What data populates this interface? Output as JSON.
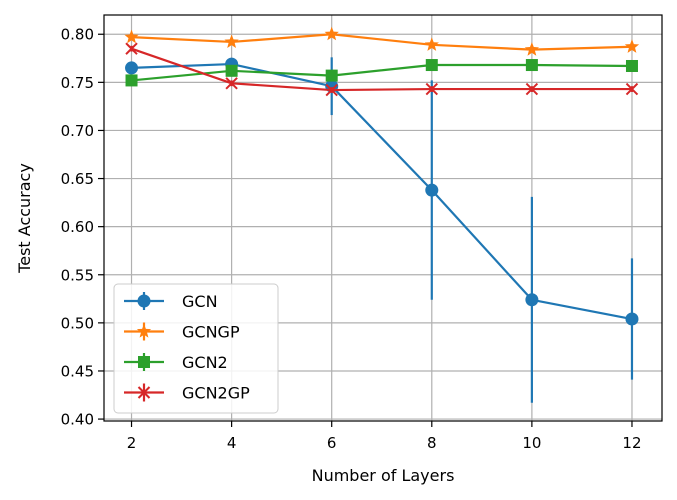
{
  "chart_data": {
    "type": "line",
    "xlabel": "Number of Layers",
    "ylabel": "Test Accuracy",
    "x": [
      2,
      4,
      6,
      8,
      10,
      12
    ],
    "xlim": [
      1.45,
      12.6
    ],
    "ylim": [
      0.398,
      0.82
    ],
    "xticks": [
      "2",
      "4",
      "6",
      "8",
      "10",
      "12"
    ],
    "yticks": [
      "0.40",
      "0.45",
      "0.50",
      "0.55",
      "0.60",
      "0.65",
      "0.70",
      "0.75",
      "0.80"
    ],
    "grid": true,
    "legend_position": "lower-left",
    "series": [
      {
        "name": "GCN",
        "color": "#1f77b4",
        "marker": "circle",
        "values": [
          0.765,
          0.769,
          0.746,
          0.638,
          0.524,
          0.504
        ],
        "error": [
          0.003,
          0.003,
          0.03,
          0.114,
          0.107,
          0.063
        ]
      },
      {
        "name": "GCNGP",
        "color": "#ff7f0e",
        "marker": "star",
        "values": [
          0.797,
          0.792,
          0.8,
          0.789,
          0.784,
          0.787
        ],
        "error": [
          0.003,
          0.003,
          0.003,
          0.003,
          0.003,
          0.003
        ]
      },
      {
        "name": "GCN2",
        "color": "#2ca02c",
        "marker": "square",
        "values": [
          0.752,
          0.762,
          0.757,
          0.768,
          0.768,
          0.767
        ],
        "error": [
          0.003,
          0.003,
          0.003,
          0.003,
          0.003,
          0.003
        ]
      },
      {
        "name": "GCN2GP",
        "color": "#d62728",
        "marker": "x",
        "values": [
          0.785,
          0.749,
          0.742,
          0.743,
          0.743,
          0.743
        ],
        "error": [
          0.003,
          0.003,
          0.003,
          0.003,
          0.003,
          0.003
        ]
      }
    ]
  }
}
